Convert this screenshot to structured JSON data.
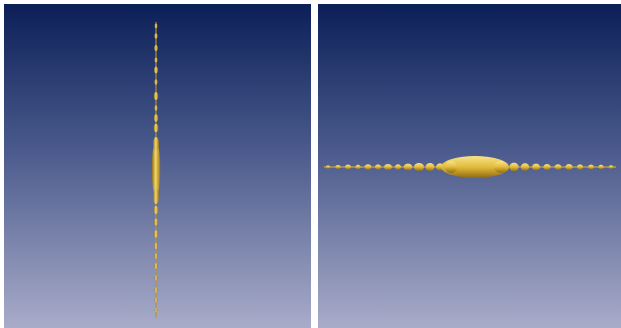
{
  "figure": {
    "panels": [
      {
        "id": "left",
        "view": "side",
        "background_top": "#0b1f57",
        "background_bottom": "#a9acc9",
        "structure_color": "#e8c44a"
      },
      {
        "id": "right",
        "view": "top",
        "background_top": "#0b1f57",
        "background_bottom": "#a9acc9",
        "structure_color": "#e8c44a"
      }
    ]
  }
}
